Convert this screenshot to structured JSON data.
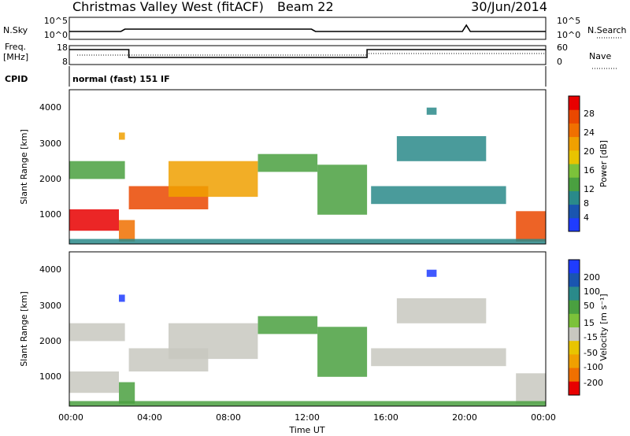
{
  "header": {
    "title": "Christmas Valley West (fitACF)",
    "beam": "Beam 22",
    "date": "30/Jun/2014"
  },
  "top_panels": {
    "nsky_label": "N.Sky",
    "nsky_ticks": [
      "10^5",
      "10^0"
    ],
    "nsearch_label": "N.Search",
    "nsearch_ticks": [
      "10^5",
      "10^0"
    ],
    "freq_label": "Freq.",
    "freq_unit": "[MHz]",
    "freq_ticks": [
      "18",
      "8"
    ],
    "nave_label": "Nave",
    "nave_ticks": [
      "60",
      "0"
    ],
    "cpid_label": "CPID",
    "cpid_value": "normal (fast) 151 IF"
  },
  "axes": {
    "ylabel": "Slant Range [km]",
    "y_ticks": [
      "4000",
      "3000",
      "2000",
      "1000"
    ],
    "xlabel": "Time UT",
    "x_ticks": [
      "00:00",
      "04:00",
      "08:00",
      "12:00",
      "16:00",
      "20:00",
      "00:00"
    ]
  },
  "colorbars": {
    "power_label": "Power [dB]",
    "power_ticks": [
      "28",
      "24",
      "20",
      "16",
      "12",
      "8",
      "4"
    ],
    "power_colors": [
      "#1f3cff",
      "#1a55b0",
      "#2a8a8a",
      "#4aa040",
      "#7cc23a",
      "#e8c400",
      "#f0a000",
      "#f07000",
      "#ea4800",
      "#e80000"
    ],
    "velocity_label": "Velocity [m s⁻¹]",
    "velocity_ticks": [
      "200",
      "100",
      "50",
      "15",
      "-15",
      "-50",
      "-100",
      "-200"
    ],
    "velocity_colors": [
      "#1f3cff",
      "#1a55b0",
      "#2a8a8a",
      "#4aa040",
      "#7cc23a",
      "#c8c8c0",
      "#e8c400",
      "#f0a000",
      "#f07000",
      "#e80000"
    ]
  },
  "chart_data": [
    {
      "type": "heatmap",
      "title": "Power",
      "x_range_hours": [
        0,
        24
      ],
      "ylim_km": [
        180,
        4500
      ],
      "color_scale": "Power [dB]",
      "clim": [
        0,
        30
      ],
      "regions": [
        {
          "name": "A",
          "t0": 0.0,
          "t1": 2.5,
          "r0": 550,
          "r1": 1150,
          "value": 27
        },
        {
          "name": "B",
          "t0": 2.5,
          "t1": 3.3,
          "r0": 250,
          "r1": 850,
          "value": 22
        },
        {
          "name": "C",
          "t0": 3.0,
          "t1": 7.0,
          "r0": 1150,
          "r1": 1800,
          "value": 26
        },
        {
          "name": "D",
          "t0": 5.0,
          "t1": 9.5,
          "r0": 1500,
          "r1": 2500,
          "value": 18
        },
        {
          "name": "E",
          "t0": 9.5,
          "t1": 12.5,
          "r0": 2200,
          "r1": 2700,
          "value": 10
        },
        {
          "name": "F",
          "t0": 12.5,
          "t1": 15.0,
          "r0": 1000,
          "r1": 2400,
          "value": 10
        },
        {
          "name": "G",
          "t0": 0.0,
          "t1": 2.8,
          "r0": 2000,
          "r1": 2500,
          "value": 10
        },
        {
          "name": "H",
          "t0": 15.2,
          "t1": 22.0,
          "r0": 1300,
          "r1": 1800,
          "value": 7
        },
        {
          "name": "I",
          "t0": 16.5,
          "t1": 21.0,
          "r0": 2500,
          "r1": 3200,
          "value": 6
        },
        {
          "name": "J",
          "t0": 22.5,
          "t1": 24.0,
          "r0": 250,
          "r1": 1100,
          "value": 24
        },
        {
          "name": "K",
          "t0": 2.5,
          "t1": 2.8,
          "r0": 3100,
          "r1": 3300,
          "value": 20
        },
        {
          "name": "L",
          "t0": 18.0,
          "t1": 18.5,
          "r0": 3800,
          "r1": 4000,
          "value": 6
        },
        {
          "name": "M",
          "t0": 0.0,
          "t1": 24.0,
          "r0": 180,
          "r1": 320,
          "value": 8
        }
      ]
    },
    {
      "type": "heatmap",
      "title": "Velocity",
      "x_range_hours": [
        0,
        24
      ],
      "ylim_km": [
        180,
        4500
      ],
      "color_scale": "Velocity [m s-1]",
      "clim": [
        -200,
        200
      ],
      "regions": [
        {
          "name": "A",
          "t0": 0.0,
          "t1": 2.5,
          "r0": 550,
          "r1": 1150,
          "value": 0
        },
        {
          "name": "B",
          "t0": 2.5,
          "t1": 3.3,
          "r0": 250,
          "r1": 850,
          "value": 30
        },
        {
          "name": "C",
          "t0": 3.0,
          "t1": 7.0,
          "r0": 1150,
          "r1": 1800,
          "value": 0
        },
        {
          "name": "D",
          "t0": 5.0,
          "t1": 9.5,
          "r0": 1500,
          "r1": 2500,
          "value": 0
        },
        {
          "name": "E",
          "t0": 9.5,
          "t1": 12.5,
          "r0": 2200,
          "r1": 2700,
          "value": 30
        },
        {
          "name": "F",
          "t0": 12.5,
          "t1": 15.0,
          "r0": 1000,
          "r1": 2400,
          "value": 30
        },
        {
          "name": "G",
          "t0": 0.0,
          "t1": 2.8,
          "r0": 2000,
          "r1": 2500,
          "value": 0
        },
        {
          "name": "H",
          "t0": 15.2,
          "t1": 22.0,
          "r0": 1300,
          "r1": 1800,
          "value": 0
        },
        {
          "name": "I",
          "t0": 16.5,
          "t1": 21.0,
          "r0": 2500,
          "r1": 3200,
          "value": 0
        },
        {
          "name": "J",
          "t0": 22.5,
          "t1": 24.0,
          "r0": 250,
          "r1": 1100,
          "value": 0
        },
        {
          "name": "K",
          "t0": 2.5,
          "t1": 2.8,
          "r0": 3100,
          "r1": 3300,
          "value": 180
        },
        {
          "name": "L",
          "t0": 18.0,
          "t1": 18.5,
          "r0": 3800,
          "r1": 4000,
          "value": 180
        },
        {
          "name": "M",
          "t0": 0.0,
          "t1": 24.0,
          "r0": 180,
          "r1": 320,
          "value": 30
        }
      ]
    }
  ]
}
